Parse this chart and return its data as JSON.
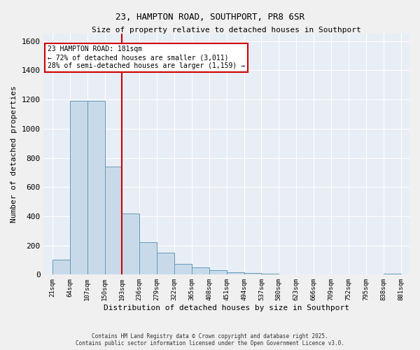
{
  "title1": "23, HAMPTON ROAD, SOUTHPORT, PR8 6SR",
  "title2": "Size of property relative to detached houses in Southport",
  "xlabel": "Distribution of detached houses by size in Southport",
  "ylabel": "Number of detached properties",
  "bin_labels": [
    "21sqm",
    "64sqm",
    "107sqm",
    "150sqm",
    "193sqm",
    "236sqm",
    "279sqm",
    "322sqm",
    "365sqm",
    "408sqm",
    "451sqm",
    "494sqm",
    "537sqm",
    "580sqm",
    "623sqm",
    "666sqm",
    "709sqm",
    "752sqm",
    "795sqm",
    "838sqm",
    "881sqm"
  ],
  "bar_heights": [
    100,
    1190,
    1190,
    740,
    420,
    220,
    150,
    75,
    50,
    30,
    15,
    10,
    5,
    0,
    0,
    0,
    0,
    0,
    0,
    5
  ],
  "bar_color": "#c8daea",
  "bar_edge_color": "#6699bb",
  "background_color": "#e8eef5",
  "grid_color": "#ffffff",
  "red_line_bin_index": 4,
  "annotation_text": "23 HAMPTON ROAD: 181sqm\n← 72% of detached houses are smaller (3,011)\n28% of semi-detached houses are larger (1,159) →",
  "annotation_box_color": "#ffffff",
  "annotation_box_edge_color": "#cc0000",
  "ylim": [
    0,
    1650
  ],
  "yticks": [
    0,
    200,
    400,
    600,
    800,
    1000,
    1200,
    1400,
    1600
  ],
  "footnote1": "Contains HM Land Registry data © Crown copyright and database right 2025.",
  "footnote2": "Contains public sector information licensed under the Open Government Licence v3.0."
}
